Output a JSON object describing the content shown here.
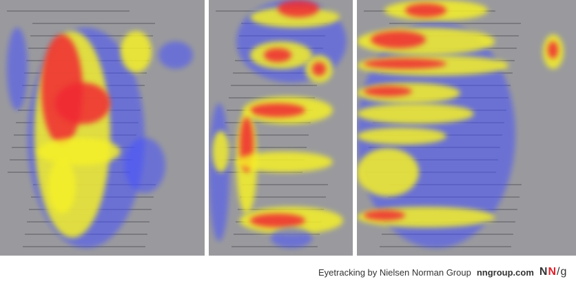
{
  "panels": [
    {
      "name": "corporate-about-page-heatmap"
    },
    {
      "name": "ecommerce-product-page-heatmap"
    },
    {
      "name": "search-results-page-heatmap"
    }
  ],
  "caption": {
    "text": "Eyetracking by Nielsen Norman Group",
    "site": "nngroup.com",
    "logo": "NN/g"
  },
  "colors": {
    "low": "#4650ff",
    "mid": "#f5f028",
    "high": "#f02832",
    "logo_accent": "#e0202a"
  }
}
